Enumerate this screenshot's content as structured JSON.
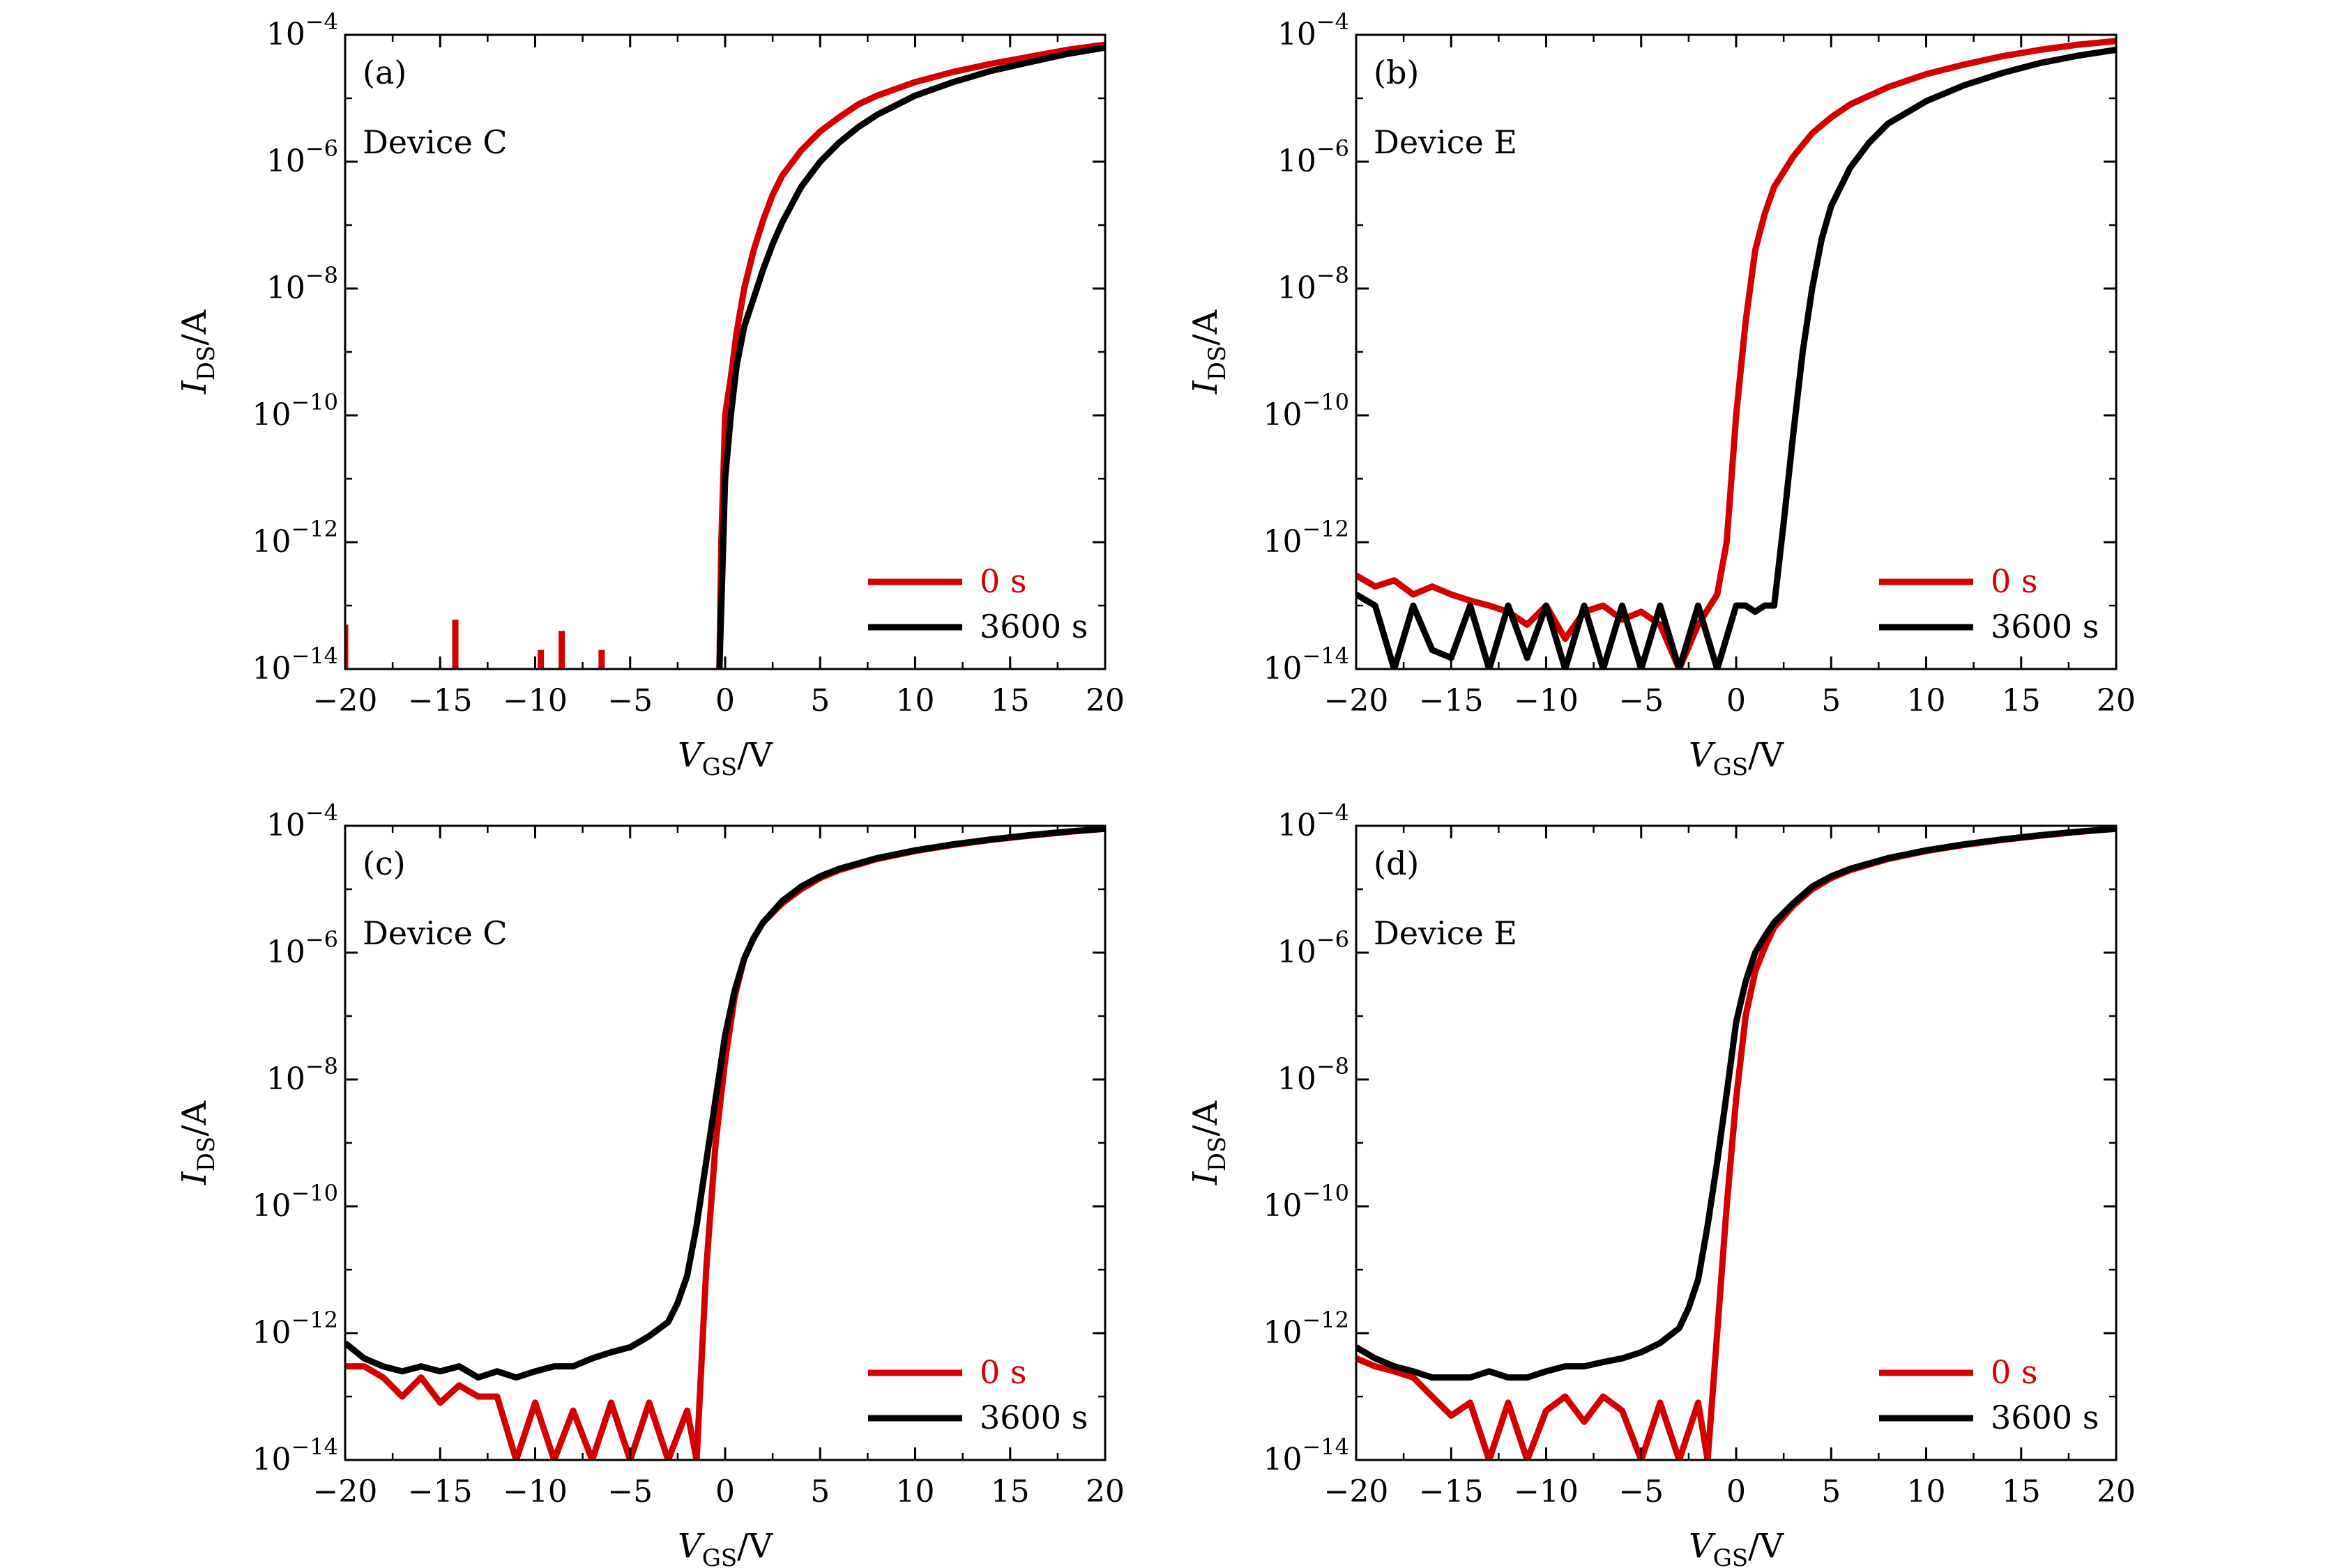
{
  "figure": {
    "panels": [
      {
        "id": "a",
        "label": "(a)",
        "device": "Device C"
      },
      {
        "id": "b",
        "label": "(b)",
        "device": "Device E"
      },
      {
        "id": "c",
        "label": "(c)",
        "device": "Device C"
      },
      {
        "id": "d",
        "label": "(d)",
        "device": "Device E"
      }
    ]
  },
  "colors": {
    "series_0s": "#d40000",
    "series_3600s": "#000000",
    "axis": "#000000"
  },
  "chart_data": [
    {
      "type": "line",
      "panel_label": "(a)",
      "annotation": "Device C",
      "xlabel": "V_GS/V",
      "ylabel": "I_DS/A",
      "xlim": [
        -20,
        20
      ],
      "ylim": [
        1e-14,
        0.0001
      ],
      "yscale": "log",
      "xticks": [
        -20,
        -15,
        -10,
        -5,
        0,
        5,
        10,
        15,
        20
      ],
      "xtick_labels": [
        "−20",
        "−15",
        "−10",
        "−5",
        "0",
        "5",
        "10",
        "15",
        "20"
      ],
      "yticks": [
        1e-14,
        1e-12,
        1e-10,
        1e-08,
        1e-06,
        0.0001
      ],
      "ytick_labels": [
        {
          "base": "10",
          "exp": "−14"
        },
        {
          "base": "10",
          "exp": "−12"
        },
        {
          "base": "10",
          "exp": "−10"
        },
        {
          "base": "10",
          "exp": "−8"
        },
        {
          "base": "10",
          "exp": "−6"
        },
        {
          "base": "10",
          "exp": "−4"
        }
      ],
      "legend_position": "lower-right",
      "series": [
        {
          "name": "0 s",
          "color": "#d40000",
          "spikes": [
            [
              -20,
              5e-14
            ],
            [
              -14.2,
              6e-14
            ],
            [
              -9.7,
              2e-14
            ],
            [
              -8.6,
              4e-14
            ],
            [
              -6.5,
              2e-14
            ]
          ],
          "x": [
            -0.3,
            -0.2,
            0,
            0.3,
            0.6,
            1,
            1.5,
            2,
            2.5,
            3,
            4,
            5,
            6,
            7,
            8,
            10,
            12,
            14,
            16,
            18,
            20
          ],
          "y": [
            1e-14,
            1e-12,
            1e-10,
            4e-10,
            2e-09,
            1e-08,
            4e-08,
            1.2e-07,
            3e-07,
            6e-07,
            1.5e-06,
            3e-06,
            5e-06,
            8e-06,
            1.1e-05,
            1.8e-05,
            2.6e-05,
            3.5e-05,
            4.5e-05,
            5.8e-05,
            7e-05
          ]
        },
        {
          "name": "3600 s",
          "color": "#000000",
          "spikes": [],
          "x": [
            -0.3,
            -0.1,
            0,
            0.3,
            0.6,
            1,
            1.5,
            2,
            2.5,
            3,
            4,
            5,
            6,
            7,
            8,
            10,
            12,
            14,
            16,
            18,
            20
          ],
          "y": [
            1e-14,
            1e-12,
            1e-11,
            1e-10,
            6e-10,
            2.5e-09,
            7e-09,
            2e-08,
            5e-08,
            1.1e-07,
            4e-07,
            1e-06,
            2e-06,
            3.5e-06,
            5.5e-06,
            1.1e-05,
            1.8e-05,
            2.7e-05,
            3.7e-05,
            5e-05,
            6.3e-05
          ]
        }
      ]
    },
    {
      "type": "line",
      "panel_label": "(b)",
      "annotation": "Device E",
      "xlabel": "V_GS/V",
      "ylabel": "I_DS/A",
      "xlim": [
        -20,
        20
      ],
      "ylim": [
        1e-14,
        0.0001
      ],
      "yscale": "log",
      "xticks": [
        -20,
        -15,
        -10,
        -5,
        0,
        5,
        10,
        15,
        20
      ],
      "xtick_labels": [
        "−20",
        "−15",
        "−10",
        "−5",
        "0",
        "5",
        "10",
        "15",
        "20"
      ],
      "yticks": [
        1e-14,
        1e-12,
        1e-10,
        1e-08,
        1e-06,
        0.0001
      ],
      "ytick_labels": [
        {
          "base": "10",
          "exp": "−14"
        },
        {
          "base": "10",
          "exp": "−12"
        },
        {
          "base": "10",
          "exp": "−10"
        },
        {
          "base": "10",
          "exp": "−8"
        },
        {
          "base": "10",
          "exp": "−6"
        },
        {
          "base": "10",
          "exp": "−4"
        }
      ],
      "legend_position": "lower-right",
      "series": [
        {
          "name": "0 s",
          "color": "#d40000",
          "spikes": [],
          "x": [
            -20,
            -19,
            -18,
            -17,
            -16,
            -15,
            -14,
            -13,
            -12,
            -11,
            -10,
            -9,
            -8,
            -7,
            -6,
            -5,
            -4,
            -3,
            -2,
            -1,
            -0.5,
            0,
            0.5,
            1,
            1.5,
            2,
            3,
            4,
            5,
            6,
            8,
            10,
            12,
            14,
            16,
            18,
            20
          ],
          "y": [
            3e-13,
            2e-13,
            2.5e-13,
            1.5e-13,
            2e-13,
            1.5e-13,
            1.2e-13,
            1e-13,
            8e-14,
            5e-14,
            1e-13,
            3e-14,
            8e-14,
            1e-13,
            6e-14,
            8e-14,
            5e-14,
            1e-14,
            5e-14,
            1.5e-13,
            1e-12,
            1e-10,
            3e-09,
            4e-08,
            1.5e-07,
            4e-07,
            1.2e-06,
            2.8e-06,
            5e-06,
            8e-06,
            1.5e-05,
            2.4e-05,
            3.4e-05,
            4.6e-05,
            5.8e-05,
            7e-05,
            8e-05
          ]
        },
        {
          "name": "3600 s",
          "color": "#000000",
          "spikes": [],
          "x": [
            -20,
            -19,
            -18,
            -17,
            -16,
            -15,
            -14,
            -13,
            -12,
            -11,
            -10,
            -9,
            -8,
            -7,
            -6,
            -5,
            -4,
            -3,
            -2,
            -1,
            0,
            0.5,
            1,
            1.5,
            2,
            2.5,
            3,
            3.5,
            4,
            4.5,
            5,
            6,
            7,
            8,
            10,
            12,
            14,
            16,
            18,
            20
          ],
          "y": [
            1.5e-13,
            1e-13,
            1e-14,
            1e-13,
            2e-14,
            1.5e-14,
            1e-13,
            1e-14,
            1e-13,
            1.5e-14,
            1e-13,
            1e-14,
            1e-13,
            1e-14,
            1e-13,
            1e-14,
            1e-13,
            1e-14,
            1e-13,
            1e-14,
            1e-13,
            1e-13,
            8e-14,
            1e-13,
            1e-13,
            2e-12,
            5e-11,
            1e-09,
            1e-08,
            6e-08,
            2e-07,
            8e-07,
            2e-06,
            4e-06,
            9e-06,
            1.6e-05,
            2.5e-05,
            3.6e-05,
            4.7e-05,
            5.8e-05
          ]
        }
      ]
    },
    {
      "type": "line",
      "panel_label": "(c)",
      "annotation": "Device C",
      "xlabel": "V_GS/V",
      "ylabel": "I_DS/A",
      "xlim": [
        -20,
        20
      ],
      "ylim": [
        1e-14,
        0.0001
      ],
      "yscale": "log",
      "xticks": [
        -20,
        -15,
        -10,
        -5,
        0,
        5,
        10,
        15,
        20
      ],
      "xtick_labels": [
        "−20",
        "−15",
        "−10",
        "−5",
        "0",
        "5",
        "10",
        "15",
        "20"
      ],
      "yticks": [
        1e-14,
        1e-12,
        1e-10,
        1e-08,
        1e-06,
        0.0001
      ],
      "ytick_labels": [
        {
          "base": "10",
          "exp": "−14"
        },
        {
          "base": "10",
          "exp": "−12"
        },
        {
          "base": "10",
          "exp": "−10"
        },
        {
          "base": "10",
          "exp": "−8"
        },
        {
          "base": "10",
          "exp": "−6"
        },
        {
          "base": "10",
          "exp": "−4"
        }
      ],
      "legend_position": "lower-right",
      "series": [
        {
          "name": "0 s",
          "color": "#d40000",
          "spikes": [],
          "x": [
            -20,
            -19,
            -18,
            -17,
            -16,
            -15,
            -14,
            -13,
            -12,
            -11,
            -10,
            -9,
            -8,
            -7,
            -6,
            -5,
            -4,
            -3,
            -2,
            -1.5,
            -1,
            -0.5,
            0,
            0.5,
            1,
            1.5,
            2,
            3,
            4,
            5,
            6,
            8,
            10,
            12,
            14,
            16,
            18,
            20
          ],
          "y": [
            3e-13,
            3e-13,
            2e-13,
            1e-13,
            2e-13,
            8e-14,
            1.5e-13,
            1e-13,
            1e-13,
            1e-14,
            8e-14,
            1e-14,
            6e-14,
            1e-14,
            8e-14,
            1e-14,
            8e-14,
            1e-14,
            6e-14,
            1e-14,
            1e-11,
            1e-09,
            2e-08,
            2e-07,
            8e-07,
            1.7e-06,
            3e-06,
            6e-06,
            1e-05,
            1.5e-05,
            2e-05,
            3e-05,
            4e-05,
            5e-05,
            6e-05,
            7e-05,
            8e-05,
            9e-05
          ]
        },
        {
          "name": "3600 s",
          "color": "#000000",
          "spikes": [],
          "x": [
            -20,
            -19,
            -18,
            -17,
            -16,
            -15,
            -14,
            -13,
            -12,
            -11,
            -10,
            -9,
            -8,
            -7,
            -6,
            -5,
            -4,
            -3,
            -2.5,
            -2,
            -1.5,
            -1,
            -0.5,
            0,
            0.5,
            1,
            1.5,
            2,
            3,
            4,
            5,
            6,
            8,
            10,
            12,
            14,
            16,
            18,
            20
          ],
          "y": [
            7e-13,
            4e-13,
            3e-13,
            2.5e-13,
            3e-13,
            2.5e-13,
            3e-13,
            2e-13,
            2.5e-13,
            2e-13,
            2.5e-13,
            3e-13,
            3e-13,
            4e-13,
            5e-13,
            6e-13,
            9e-13,
            1.5e-12,
            3e-12,
            8e-12,
            5e-11,
            5e-10,
            5e-09,
            5e-08,
            2.5e-07,
            8e-07,
            1.7e-06,
            3e-06,
            6.5e-06,
            1.1e-05,
            1.6e-05,
            2.1e-05,
            3.1e-05,
            4.1e-05,
            5.1e-05,
            6.1e-05,
            7.1e-05,
            8.1e-05,
            9e-05
          ]
        }
      ]
    },
    {
      "type": "line",
      "panel_label": "(d)",
      "annotation": "Device E",
      "xlabel": "V_GS/V",
      "ylabel": "I_DS/A",
      "xlim": [
        -20,
        20
      ],
      "ylim": [
        1e-14,
        0.0001
      ],
      "yscale": "log",
      "xticks": [
        -20,
        -15,
        -10,
        -5,
        0,
        5,
        10,
        15,
        20
      ],
      "xtick_labels": [
        "−20",
        "−15",
        "−10",
        "−5",
        "0",
        "5",
        "10",
        "15",
        "20"
      ],
      "yticks": [
        1e-14,
        1e-12,
        1e-10,
        1e-08,
        1e-06,
        0.0001
      ],
      "ytick_labels": [
        {
          "base": "10",
          "exp": "−14"
        },
        {
          "base": "10",
          "exp": "−12"
        },
        {
          "base": "10",
          "exp": "−10"
        },
        {
          "base": "10",
          "exp": "−8"
        },
        {
          "base": "10",
          "exp": "−6"
        },
        {
          "base": "10",
          "exp": "−4"
        }
      ],
      "legend_position": "lower-right",
      "series": [
        {
          "name": "0 s",
          "color": "#d40000",
          "spikes": [],
          "x": [
            -20,
            -19,
            -18,
            -17,
            -16,
            -15,
            -14,
            -13,
            -12,
            -11,
            -10,
            -9,
            -8,
            -7,
            -6,
            -5,
            -4,
            -3,
            -2,
            -1.5,
            -1,
            -0.5,
            0,
            0.5,
            1,
            1.5,
            2,
            3,
            4,
            5,
            6,
            8,
            10,
            12,
            14,
            16,
            18,
            20
          ],
          "y": [
            4e-13,
            3e-13,
            2.5e-13,
            2e-13,
            1e-13,
            5e-14,
            8e-14,
            1e-14,
            8e-14,
            1e-14,
            6e-14,
            1e-13,
            4e-14,
            1e-13,
            6e-14,
            1e-14,
            8e-14,
            1e-14,
            8e-14,
            1e-14,
            1e-12,
            1e-10,
            5e-09,
            1e-07,
            5e-07,
            1.2e-06,
            2.5e-06,
            5.5e-06,
            1e-05,
            1.5e-05,
            2e-05,
            3e-05,
            4e-05,
            5e-05,
            6e-05,
            7e-05,
            8e-05,
            9e-05
          ]
        },
        {
          "name": "3600 s",
          "color": "#000000",
          "spikes": [],
          "x": [
            -20,
            -19,
            -18,
            -17,
            -16,
            -15,
            -14,
            -13,
            -12,
            -11,
            -10,
            -9,
            -8,
            -7,
            -6,
            -5,
            -4,
            -3,
            -2.5,
            -2,
            -1.5,
            -1,
            -0.5,
            0,
            0.5,
            1,
            1.5,
            2,
            3,
            4,
            5,
            6,
            8,
            10,
            12,
            14,
            16,
            18,
            20
          ],
          "y": [
            6e-13,
            4e-13,
            3e-13,
            2.5e-13,
            2e-13,
            2e-13,
            2e-13,
            2.5e-13,
            2e-13,
            2e-13,
            2.5e-13,
            3e-13,
            3e-13,
            3.5e-13,
            4e-13,
            5e-13,
            7e-13,
            1.2e-12,
            2.5e-12,
            7e-12,
            5e-11,
            5e-10,
            6e-09,
            8e-08,
            3.5e-07,
            1e-06,
            1.8e-06,
            3e-06,
            6e-06,
            1.1e-05,
            1.6e-05,
            2.1e-05,
            3.1e-05,
            4.1e-05,
            5.1e-05,
            6.1e-05,
            7.1e-05,
            8.1e-05,
            9e-05
          ]
        }
      ]
    }
  ]
}
